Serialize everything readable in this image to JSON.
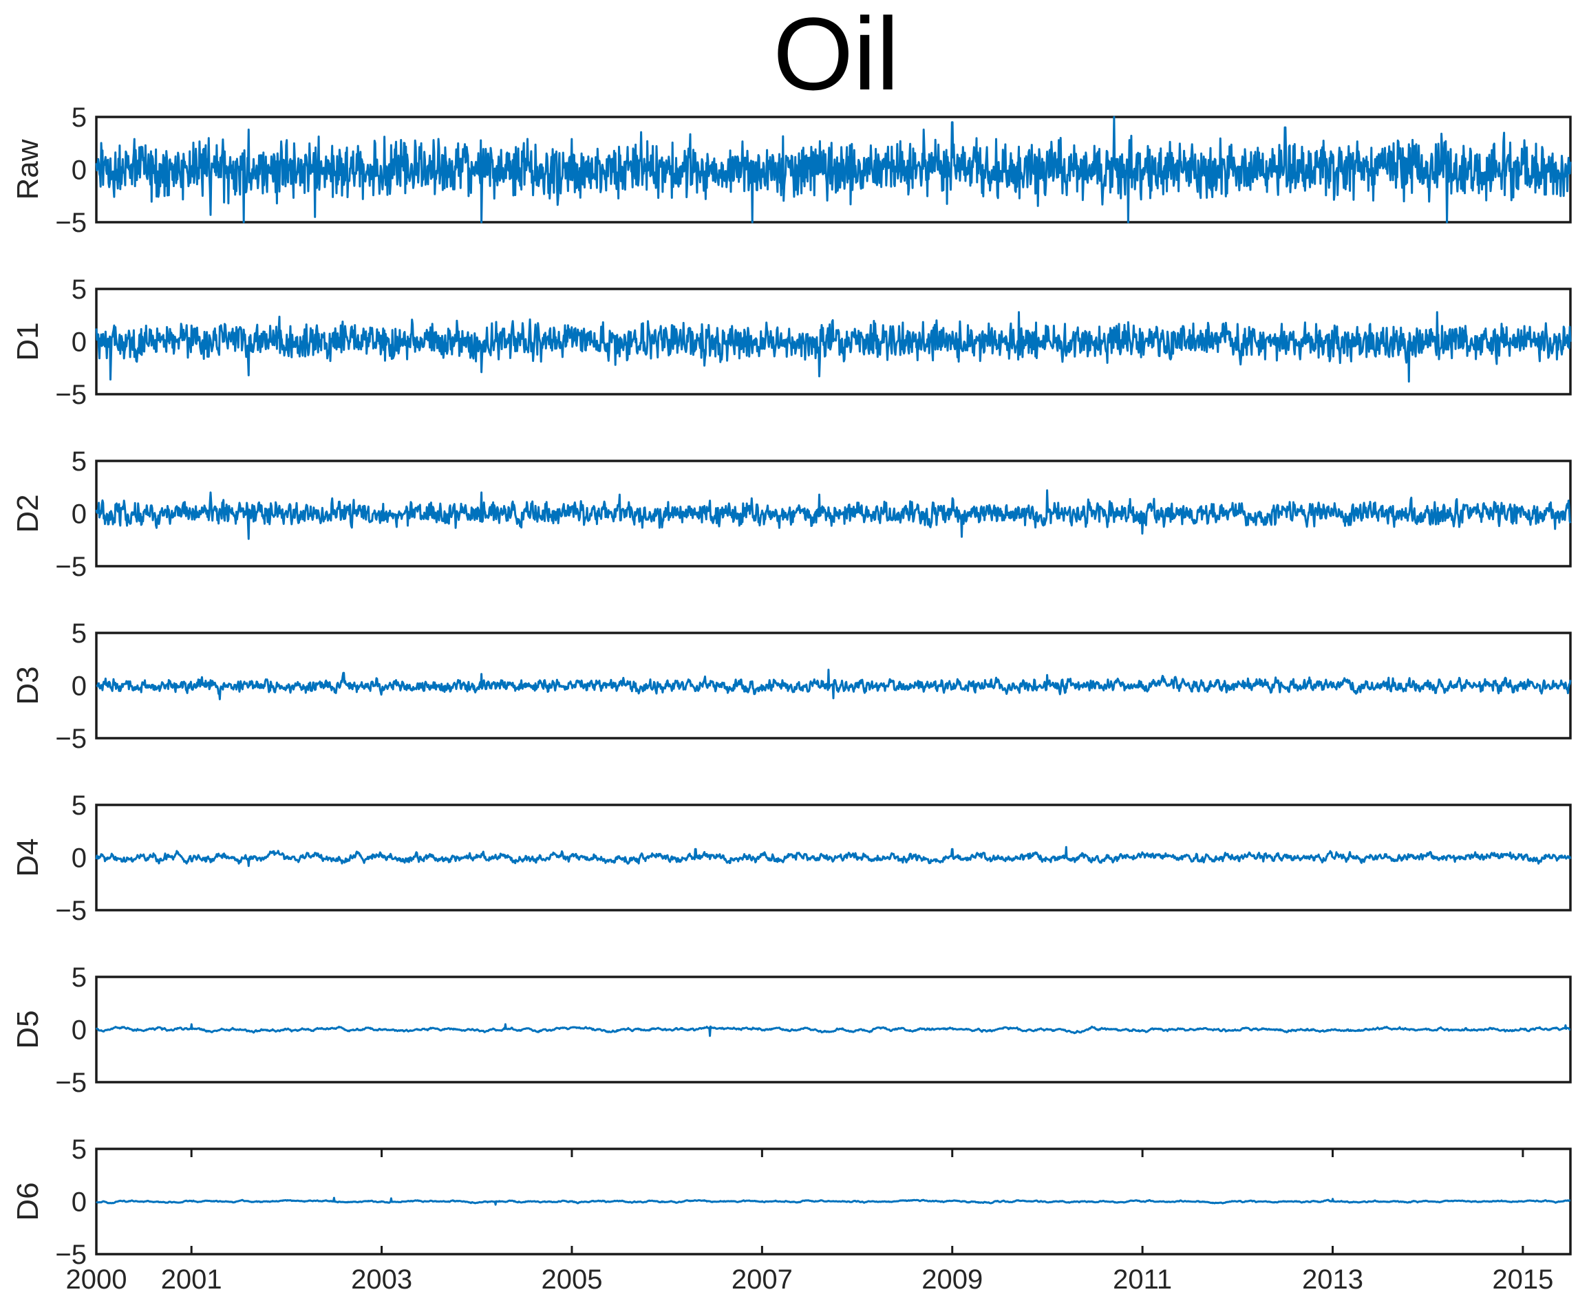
{
  "title": "Oil",
  "colors": {
    "series": "#0072BD",
    "axis": "#1a1a1a",
    "text": "#262626"
  },
  "chart_data": [
    {
      "type": "line",
      "ylabel": "Raw",
      "ylim": [
        -5,
        5
      ],
      "yticks": [
        "−5",
        "0",
        "5"
      ],
      "xlim": [
        2000,
        2015.5
      ],
      "amplitude": 1.25,
      "spikes": [
        [
          2000.4,
          2.9
        ],
        [
          2001.2,
          -4.3
        ],
        [
          2001.6,
          3.8
        ],
        [
          2001.55,
          -5.0
        ],
        [
          2002.3,
          -4.5
        ],
        [
          2004.05,
          -5.0
        ],
        [
          2006.9,
          -5.0
        ],
        [
          2008.7,
          3.8
        ],
        [
          2009.0,
          4.5
        ],
        [
          2010.7,
          5.0
        ],
        [
          2010.85,
          -5.0
        ],
        [
          2012.5,
          4.0
        ],
        [
          2014.2,
          -5.0
        ],
        [
          2014.8,
          3.5
        ]
      ]
    },
    {
      "type": "line",
      "ylabel": "D1",
      "ylim": [
        -5,
        5
      ],
      "yticks": [
        "−5",
        "0",
        "5"
      ],
      "xlim": [
        2000,
        2015.5
      ],
      "amplitude": 0.75,
      "spikes": [
        [
          2000.15,
          -3.6
        ],
        [
          2001.6,
          -3.2
        ],
        [
          2004.05,
          -2.9
        ],
        [
          2007.6,
          -3.3
        ],
        [
          2009.7,
          2.8
        ],
        [
          2013.8,
          -3.8
        ],
        [
          2014.1,
          2.8
        ]
      ]
    },
    {
      "type": "line",
      "ylabel": "D2",
      "ylim": [
        -5,
        5
      ],
      "yticks": [
        "−5",
        "0",
        "5"
      ],
      "xlim": [
        2000,
        2015.5
      ],
      "amplitude": 0.5,
      "spikes": [
        [
          2001.2,
          2.0
        ],
        [
          2001.6,
          -2.4
        ],
        [
          2004.05,
          2.0
        ],
        [
          2005.5,
          1.8
        ],
        [
          2007.6,
          1.8
        ],
        [
          2009.1,
          -2.2
        ],
        [
          2010.0,
          2.2
        ],
        [
          2011.0,
          -1.9
        ]
      ]
    },
    {
      "type": "line",
      "ylabel": "D3",
      "ylim": [
        -5,
        5
      ],
      "yticks": [
        "−5",
        "0",
        "5"
      ],
      "xlim": [
        2000,
        2015.5
      ],
      "amplitude": 0.3,
      "spikes": [
        [
          2001.3,
          -1.3
        ],
        [
          2002.6,
          1.2
        ],
        [
          2004.05,
          1.1
        ],
        [
          2007.7,
          1.5
        ],
        [
          2007.75,
          -1.2
        ],
        [
          2010.0,
          1.0
        ]
      ]
    },
    {
      "type": "line",
      "ylabel": "D4",
      "ylim": [
        -5,
        5
      ],
      "yticks": [
        "−5",
        "0",
        "5"
      ],
      "xlim": [
        2000,
        2015.5
      ],
      "amplitude": 0.25,
      "spikes": [
        [
          2001.6,
          -0.8
        ],
        [
          2006.3,
          0.8
        ],
        [
          2009.0,
          0.8
        ],
        [
          2010.2,
          1.0
        ]
      ]
    },
    {
      "type": "line",
      "ylabel": "D5",
      "ylim": [
        -5,
        5
      ],
      "yticks": [
        "−5",
        "0",
        "5"
      ],
      "xlim": [
        2000,
        2015.5
      ],
      "amplitude": 0.18,
      "spikes": [
        [
          2001.0,
          0.5
        ],
        [
          2004.3,
          0.5
        ],
        [
          2006.45,
          -0.6
        ],
        [
          2015.45,
          0.4
        ]
      ]
    },
    {
      "type": "line",
      "ylabel": "D6",
      "ylim": [
        -5,
        5
      ],
      "yticks": [
        "−5",
        "0",
        "5"
      ],
      "xlim": [
        2000,
        2015.5
      ],
      "amplitude": 0.12,
      "spikes": [
        [
          2002.5,
          0.35
        ],
        [
          2003.1,
          0.3
        ],
        [
          2004.2,
          -0.3
        ],
        [
          2013.0,
          0.25
        ]
      ]
    }
  ],
  "xaxis": {
    "ticks": [
      2000,
      2001,
      2003,
      2005,
      2007,
      2009,
      2011,
      2013,
      2015
    ],
    "labels": [
      "2000",
      "2001",
      "2003",
      "2005",
      "2007",
      "2009",
      "2011",
      "2013",
      "2015"
    ]
  }
}
